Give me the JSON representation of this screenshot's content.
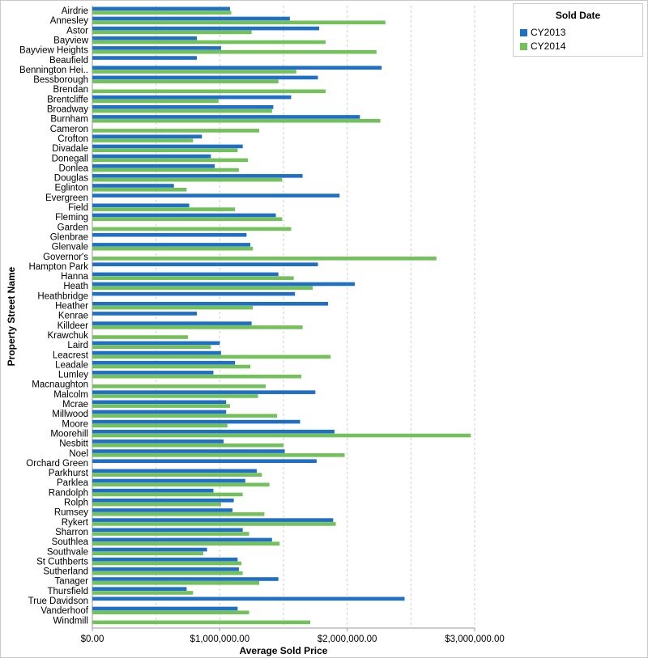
{
  "chart_data": {
    "type": "bar",
    "orientation": "horizontal",
    "xlabel": "Average Sold Price",
    "ylabel": "Property Street Name",
    "xlim": [
      0,
      3000000
    ],
    "x_ticks": [
      0,
      1000000,
      2000000,
      3000000
    ],
    "x_tick_labels": [
      "$0.00",
      "$1,000,000.00",
      "$2,000,000.00",
      "$3,000,000.00"
    ],
    "grid": "vertical dashed",
    "legend": {
      "title": "Sold Date",
      "position": "top-right"
    },
    "colors": {
      "CY2013": "#1f6fc5",
      "CY2014": "#72c15a"
    },
    "categories": [
      "Airdrie",
      "Annesley",
      "Astor",
      "Bayview",
      "Bayview Heights",
      "Beaufield",
      "Bennington Hei..",
      "Bessborough",
      "Brendan",
      "Brentcliffe",
      "Broadway",
      "Burnham",
      "Cameron",
      "Crofton",
      "Divadale",
      "Donegall",
      "Donlea",
      "Douglas",
      "Eglinton",
      "Evergreen",
      "Field",
      "Fleming",
      "Garden",
      "Glenbrae",
      "Glenvale",
      "Governor's",
      "Hampton Park",
      "Hanna",
      "Heath",
      "Heathbridge",
      "Heather",
      "Kenrae",
      "Killdeer",
      "Krawchuk",
      "Laird",
      "Leacrest",
      "Leadale",
      "Lumley",
      "Macnaughton",
      "Malcolm",
      "Mcrae",
      "Millwood",
      "Moore",
      "Moorehill",
      "Nesbitt",
      "Noel",
      "Orchard Green",
      "Parkhurst",
      "Parklea",
      "Randolph",
      "Rolph",
      "Rumsey",
      "Rykert",
      "Sharron",
      "Southlea",
      "Southvale",
      "St Cuthberts",
      "Sutherland",
      "Tanager",
      "Thursfield",
      "True Davidson",
      "Vanderhoof",
      "Windmill"
    ],
    "series": [
      {
        "name": "CY2013",
        "values": [
          1080000,
          1550000,
          1780000,
          820000,
          1010000,
          820000,
          2270000,
          1770000,
          null,
          1560000,
          1420000,
          2100000,
          null,
          860000,
          1180000,
          930000,
          960000,
          1650000,
          640000,
          1940000,
          760000,
          1440000,
          null,
          1210000,
          1240000,
          null,
          1770000,
          1460000,
          2060000,
          1590000,
          1850000,
          820000,
          1250000,
          null,
          1000000,
          1010000,
          1120000,
          950000,
          null,
          1750000,
          1050000,
          1050000,
          1630000,
          1900000,
          1030000,
          1510000,
          1760000,
          1290000,
          1200000,
          950000,
          1110000,
          1100000,
          1890000,
          1180000,
          1410000,
          900000,
          1140000,
          1150000,
          1460000,
          740000,
          2450000,
          1140000,
          null
        ]
      },
      {
        "name": "CY2014",
        "values": [
          1090000,
          2300000,
          1250000,
          1830000,
          2230000,
          null,
          1600000,
          1460000,
          1830000,
          990000,
          1410000,
          2260000,
          1310000,
          790000,
          1140000,
          1220000,
          1150000,
          1490000,
          740000,
          null,
          1120000,
          1490000,
          1560000,
          null,
          1260000,
          2700000,
          null,
          1580000,
          1730000,
          null,
          1260000,
          null,
          1650000,
          750000,
          930000,
          1870000,
          1240000,
          1640000,
          1360000,
          1300000,
          1080000,
          1450000,
          1060000,
          2970000,
          1500000,
          1980000,
          null,
          1330000,
          1390000,
          1180000,
          1010000,
          1350000,
          1910000,
          1230000,
          1470000,
          870000,
          1170000,
          1180000,
          1310000,
          790000,
          null,
          1230000,
          1710000
        ]
      }
    ]
  }
}
